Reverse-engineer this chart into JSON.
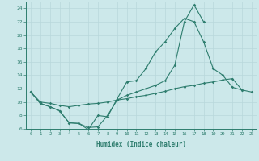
{
  "xlabel": "Humidex (Indice chaleur)",
  "x": [
    0,
    1,
    2,
    3,
    4,
    5,
    6,
    7,
    8,
    9,
    10,
    11,
    12,
    13,
    14,
    15,
    16,
    17,
    18,
    19,
    20,
    21,
    22,
    23
  ],
  "line1": [
    11.5,
    9.8,
    9.3,
    8.7,
    6.9,
    6.8,
    5.9,
    8.0,
    7.8,
    10.5,
    13.0,
    13.2,
    15.0,
    17.5,
    19.0,
    21.0,
    22.5,
    22.0,
    19.0,
    15.0,
    14.0,
    12.2,
    11.8,
    null
  ],
  "line2": [
    11.5,
    9.8,
    9.3,
    8.7,
    6.9,
    6.8,
    6.2,
    6.3,
    8.0,
    10.3,
    11.0,
    11.5,
    12.0,
    12.5,
    13.2,
    15.5,
    22.0,
    24.5,
    22.0,
    null,
    null,
    null,
    null,
    null
  ],
  "line3": [
    11.5,
    10.0,
    9.8,
    9.5,
    9.3,
    9.5,
    9.7,
    9.8,
    10.0,
    10.3,
    10.5,
    10.8,
    11.0,
    11.3,
    11.6,
    12.0,
    12.3,
    12.5,
    12.8,
    13.0,
    13.3,
    13.5,
    11.8,
    11.5
  ],
  "bg_color": "#cce8ea",
  "line_color": "#2e7d6e",
  "grid_color": "#b8d8db",
  "ylim": [
    6,
    25
  ],
  "yticks": [
    6,
    8,
    10,
    12,
    14,
    16,
    18,
    20,
    22,
    24
  ],
  "xlim": [
    -0.5,
    23.5
  ]
}
